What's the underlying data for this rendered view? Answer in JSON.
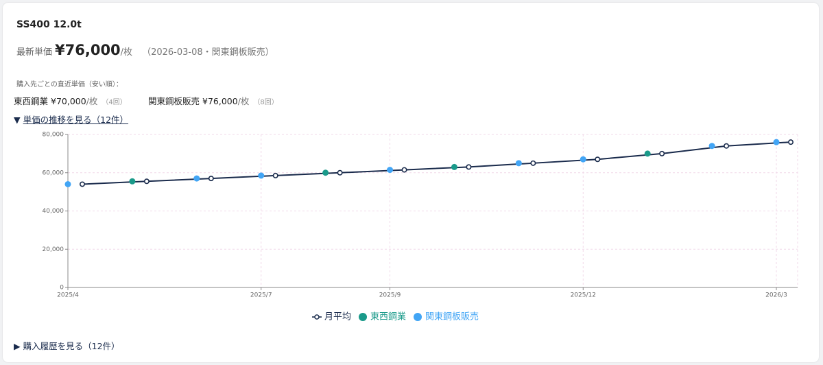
{
  "title": "SS400 12.0t",
  "latest": {
    "label": "最新単価",
    "price": "¥76,000",
    "unit": "/枚",
    "note": "（2026-03-08・関東鋼板販売）"
  },
  "suppliers_heading": "購入先ごとの直近単価（安い順）：",
  "suppliers": [
    {
      "name": "東西鋼業",
      "price": "¥70,000",
      "unit": "/枚",
      "count": "（4回）"
    },
    {
      "name": "関東鋼板販売",
      "price": "¥76,000",
      "unit": "/枚",
      "count": "（8回）"
    }
  ],
  "trend_toggle": {
    "icon": "▼",
    "label": "単価の推移を見る（12件）"
  },
  "history_toggle": {
    "icon": "▶",
    "label": "購入履歴を見る（12件）"
  },
  "chart_data": {
    "type": "line",
    "categories": [
      "2025/4",
      null,
      null,
      "2025/7",
      null,
      "2025/9",
      null,
      null,
      "2025/12",
      null,
      null,
      "2026/3"
    ],
    "series": [
      {
        "name": "月平均",
        "color": "#1a2b4c",
        "mark": "line",
        "values": [
          54000,
          55500,
          57000,
          58500,
          60000,
          61500,
          63000,
          65000,
          67000,
          70000,
          74000,
          76000
        ]
      },
      {
        "name": "東西鋼業",
        "color": "#1a9a8a",
        "mark": "dot",
        "values": [
          null,
          55500,
          null,
          null,
          60000,
          null,
          63000,
          null,
          null,
          70000,
          null,
          null
        ]
      },
      {
        "name": "関東鋼板販売",
        "color": "#42a5f5",
        "mark": "dot",
        "values": [
          54000,
          null,
          57000,
          58500,
          null,
          61500,
          null,
          65000,
          67000,
          null,
          74000,
          76000
        ]
      }
    ],
    "ylim": [
      0,
      80000
    ],
    "yticks": [
      0,
      {
        "value": 20000,
        "label": "20,000"
      },
      {
        "value": 40000,
        "label": "40,000"
      },
      {
        "value": 60000,
        "label": "60,000"
      },
      {
        "value": 80000,
        "label": "80,000"
      }
    ],
    "grid": true
  }
}
